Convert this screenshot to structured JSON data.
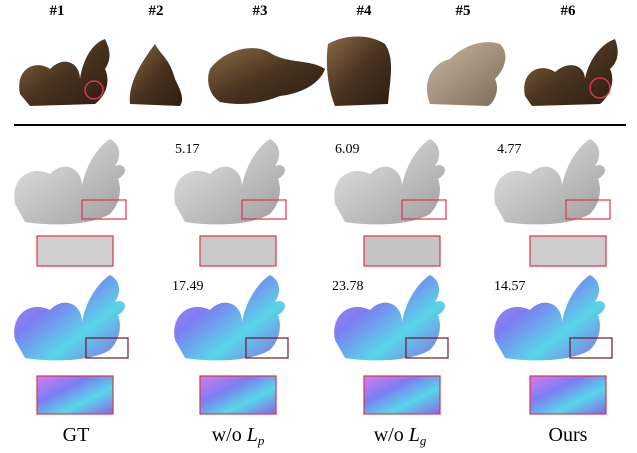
{
  "views": [
    "#1",
    "#2",
    "#3",
    "#4",
    "#5",
    "#6"
  ],
  "columns": [
    {
      "label": "GT",
      "shading_metric": "",
      "normal_metric": ""
    },
    {
      "label": "w/o ",
      "sym": "L",
      "sub": "p",
      "shading_metric": "5.17",
      "normal_metric": "17.49"
    },
    {
      "label": "w/o ",
      "sym": "L",
      "sub": "g",
      "shading_metric": "6.09",
      "normal_metric": "23.78"
    },
    {
      "label": "Ours",
      "shading_metric": "4.77",
      "normal_metric": "14.57"
    }
  ],
  "colors": {
    "highlight_box": "#d9374a",
    "bronze": "#5a4026",
    "gray_shading": "#bdbdbd"
  }
}
